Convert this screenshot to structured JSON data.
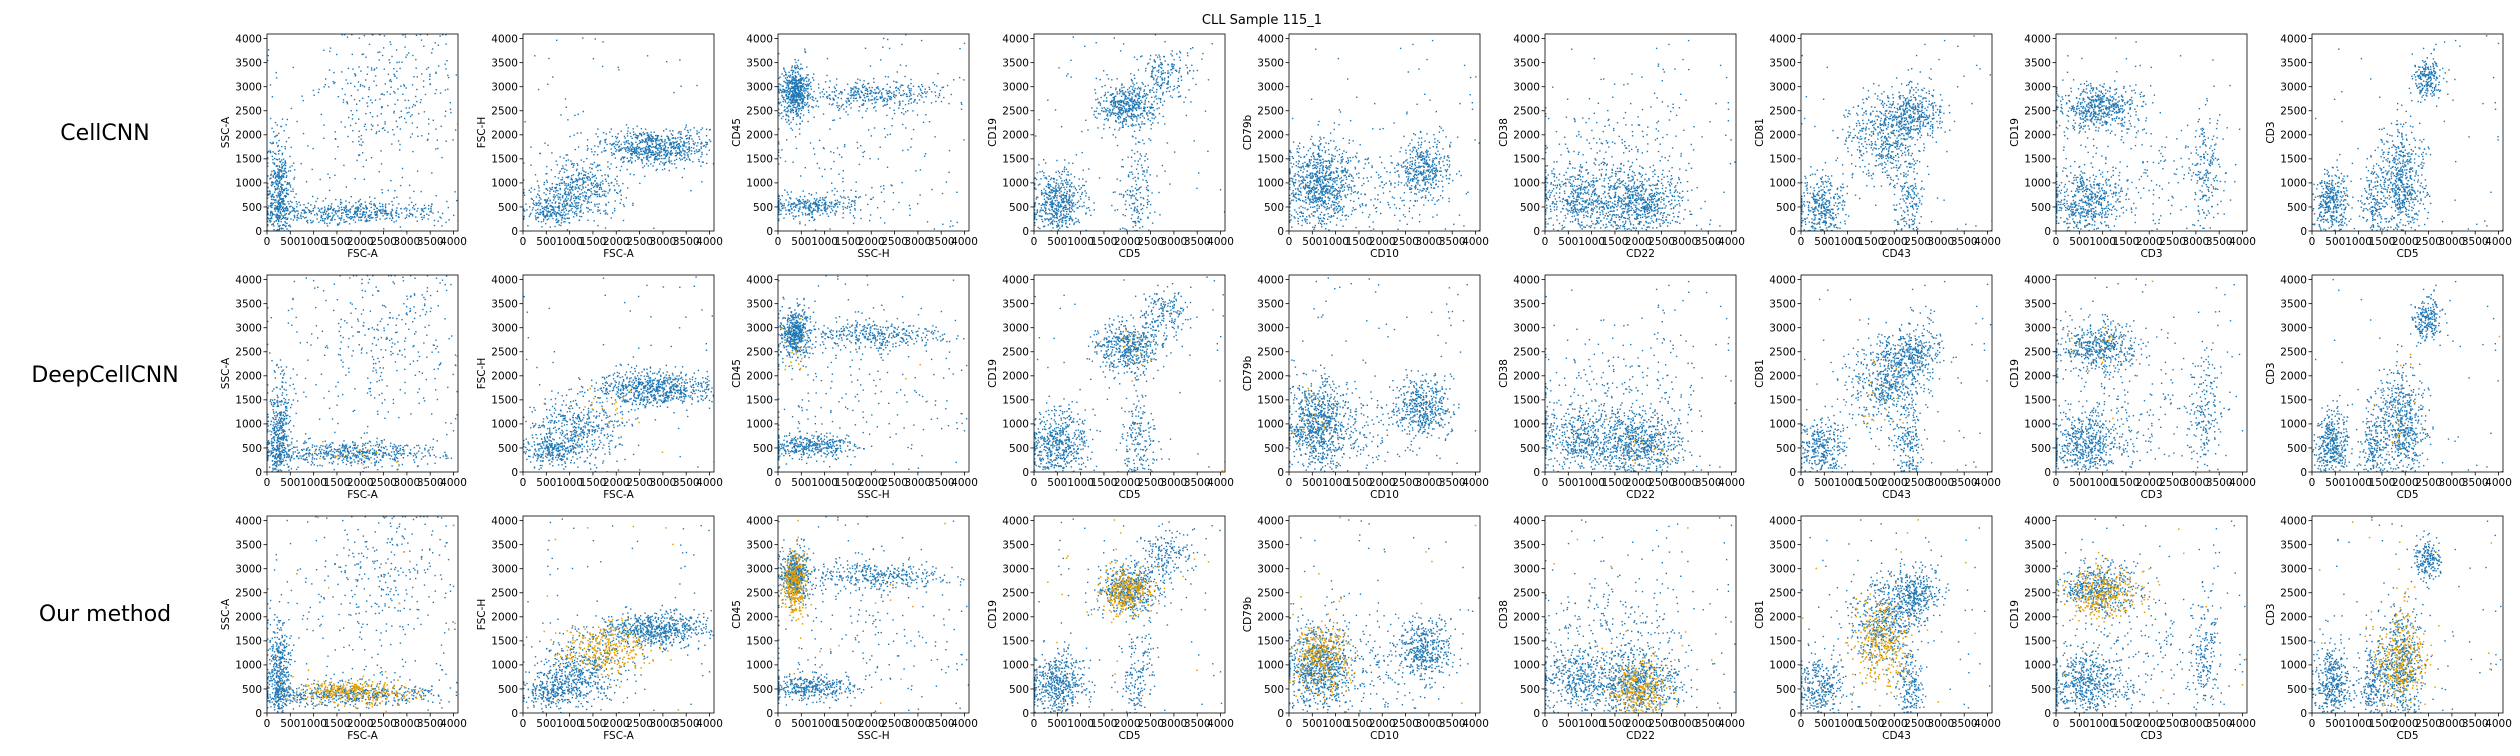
{
  "figure": {
    "title": "CLL Sample 115_1",
    "row_labels": [
      "CellCNN",
      "DeepCellCNN",
      "Our method"
    ]
  },
  "chart_data": {
    "type": "scatter",
    "title": "CLL Sample 115_1",
    "xlim": [
      0,
      4096
    ],
    "ylim": [
      0,
      4096
    ],
    "ticks": [
      0,
      500,
      1000,
      1500,
      2000,
      2500,
      3000,
      3500,
      4000
    ],
    "rows": [
      "CellCNN",
      "DeepCellCNN",
      "Our method"
    ],
    "colors": {
      "all_cells": "#1f77b4",
      "selected_cells": "#e6a000"
    },
    "panels": [
      {
        "xlabel": "FSC-A",
        "ylabel": "SSC-A",
        "clusters": [
          {
            "x": 250,
            "y": 700,
            "sx": 130,
            "sy": 600,
            "w": 3
          },
          {
            "x": 1800,
            "y": 400,
            "sx": 900,
            "sy": 120,
            "w": 3
          },
          {
            "x": 2500,
            "y": 3000,
            "sx": 700,
            "sy": 600,
            "w": 1
          },
          {
            "x": 2200,
            "y": 1800,
            "sx": 1200,
            "sy": 1200,
            "w": 1
          }
        ],
        "selected": [
          {
            "x": 1800,
            "y": 450,
            "sx": 600,
            "sy": 130,
            "w": 1
          }
        ]
      },
      {
        "xlabel": "FSC-A",
        "ylabel": "FSC-H",
        "clusters": [
          {
            "x": 1200,
            "y": 900,
            "sx": 500,
            "sy": 330,
            "w": 2
          },
          {
            "x": 2800,
            "y": 1750,
            "sx": 600,
            "sy": 180,
            "w": 3
          },
          {
            "x": 600,
            "y": 450,
            "sx": 300,
            "sy": 150,
            "w": 1
          }
        ],
        "selected": [
          {
            "x": 1800,
            "y": 1300,
            "sx": 500,
            "sy": 250,
            "w": 1
          }
        ]
      },
      {
        "xlabel": "SSC-H",
        "ylabel": "CD45",
        "clusters": [
          {
            "x": 350,
            "y": 2900,
            "sx": 160,
            "sy": 250,
            "w": 3
          },
          {
            "x": 2000,
            "y": 2850,
            "sx": 700,
            "sy": 150,
            "w": 2
          },
          {
            "x": 700,
            "y": 550,
            "sx": 500,
            "sy": 120,
            "w": 2
          },
          {
            "x": 1500,
            "y": 1500,
            "sx": 1200,
            "sy": 1000,
            "w": 1
          }
        ],
        "selected": [
          {
            "x": 350,
            "y": 2700,
            "sx": 130,
            "sy": 350,
            "w": 1
          }
        ]
      },
      {
        "xlabel": "CD5",
        "ylabel": "CD19",
        "clusters": [
          {
            "x": 2000,
            "y": 2600,
            "sx": 330,
            "sy": 250,
            "w": 3
          },
          {
            "x": 500,
            "y": 600,
            "sx": 300,
            "sy": 350,
            "w": 3
          },
          {
            "x": 2200,
            "y": 700,
            "sx": 180,
            "sy": 500,
            "w": 1
          },
          {
            "x": 2800,
            "y": 3300,
            "sx": 250,
            "sy": 250,
            "w": 1
          }
        ],
        "selected": [
          {
            "x": 2000,
            "y": 2550,
            "sx": 300,
            "sy": 250,
            "w": 1
          }
        ]
      },
      {
        "xlabel": "CD10",
        "ylabel": "CD79b",
        "clusters": [
          {
            "x": 600,
            "y": 1000,
            "sx": 350,
            "sy": 450,
            "w": 4
          },
          {
            "x": 2900,
            "y": 1350,
            "sx": 280,
            "sy": 300,
            "w": 2
          },
          {
            "x": 1800,
            "y": 1000,
            "sx": 700,
            "sy": 500,
            "w": 1
          }
        ],
        "selected": [
          {
            "x": 700,
            "y": 1200,
            "sx": 300,
            "sy": 350,
            "w": 1
          }
        ]
      },
      {
        "xlabel": "CD22",
        "ylabel": "CD38",
        "clusters": [
          {
            "x": 700,
            "y": 700,
            "sx": 450,
            "sy": 350,
            "w": 2
          },
          {
            "x": 2000,
            "y": 600,
            "sx": 450,
            "sy": 350,
            "w": 3
          },
          {
            "x": 1500,
            "y": 1700,
            "sx": 900,
            "sy": 600,
            "w": 1
          }
        ],
        "selected": [
          {
            "x": 2000,
            "y": 500,
            "sx": 300,
            "sy": 300,
            "w": 1
          }
        ]
      },
      {
        "xlabel": "CD43",
        "ylabel": "CD81",
        "clusters": [
          {
            "x": 1800,
            "y": 1900,
            "sx": 400,
            "sy": 450,
            "w": 3
          },
          {
            "x": 400,
            "y": 500,
            "sx": 250,
            "sy": 350,
            "w": 2
          },
          {
            "x": 2400,
            "y": 2500,
            "sx": 300,
            "sy": 250,
            "w": 2
          },
          {
            "x": 2300,
            "y": 500,
            "sx": 150,
            "sy": 400,
            "w": 1
          }
        ],
        "selected": [
          {
            "x": 1700,
            "y": 1500,
            "sx": 300,
            "sy": 450,
            "w": 1
          }
        ]
      },
      {
        "xlabel": "CD3",
        "ylabel": "CD19",
        "clusters": [
          {
            "x": 900,
            "y": 2600,
            "sx": 450,
            "sy": 250,
            "w": 3
          },
          {
            "x": 600,
            "y": 600,
            "sx": 400,
            "sy": 350,
            "w": 3
          },
          {
            "x": 3200,
            "y": 1200,
            "sx": 150,
            "sy": 600,
            "w": 1
          },
          {
            "x": 1800,
            "y": 1200,
            "sx": 900,
            "sy": 600,
            "w": 1
          }
        ],
        "selected": [
          {
            "x": 1000,
            "y": 2500,
            "sx": 400,
            "sy": 250,
            "w": 1
          }
        ]
      },
      {
        "xlabel": "CD5",
        "ylabel": "CD3",
        "clusters": [
          {
            "x": 1900,
            "y": 1000,
            "sx": 250,
            "sy": 600,
            "w": 3
          },
          {
            "x": 400,
            "y": 600,
            "sx": 180,
            "sy": 400,
            "w": 2
          },
          {
            "x": 1300,
            "y": 600,
            "sx": 150,
            "sy": 400,
            "w": 1
          },
          {
            "x": 2450,
            "y": 3200,
            "sx": 150,
            "sy": 200,
            "w": 1
          }
        ],
        "selected": [
          {
            "x": 1900,
            "y": 1100,
            "sx": 250,
            "sy": 500,
            "w": 1
          }
        ]
      }
    ],
    "selected_fraction_by_row": [
      0.0,
      0.015,
      0.22
    ]
  }
}
